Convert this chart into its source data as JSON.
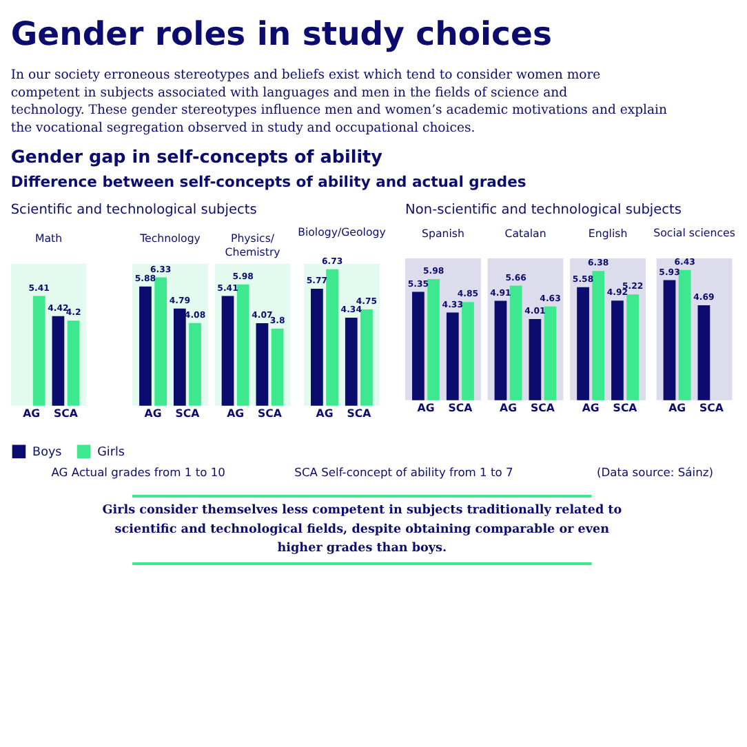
{
  "chart_data": [
    {
      "type": "other",
      "title": "Gender roles in study choices",
      "subtitle": "Gender gap in self-concepts of ability",
      "annotations": [
        "In our society erroneous stereotypes and beliefs exist which tend to consider women more competent in subjects associated with languages and men in the fields of science and technology. These gender stereotypes influence men and women’s academic motivations and explain the vocational segregation observed in study and occupational choices.",
        "Difference between self-concepts of ability and actual grades",
        "Scientific and technological subjects",
        "Non-scientific and technological subjects",
        "AG Actual grades from 1 to 10",
        "SCA Self-concept of ability from 1 to 7",
        "(Data source: Sáinz)",
        "Girls consider themselves less competent in subjects traditionally related to scientific and technological fields, despite obtaining comparable or even higher grades than boys."
      ]
    },
    {
      "type": "bar",
      "title": "Math",
      "categories": [
        "AG",
        "SCA"
      ],
      "ylim": [
        0,
        7
      ],
      "data_labels": true,
      "tick_labels": "x",
      "legend": "bottom",
      "series": [
        {
          "name": "Boys",
          "color": "#0c0c6e",
          "values": [
            null,
            4.42
          ]
        },
        {
          "name": "Girls",
          "color": "#3ee88f",
          "values": [
            5.41,
            4.2
          ]
        }
      ]
    },
    {
      "type": "bar",
      "title": "Technology",
      "categories": [
        "AG",
        "SCA"
      ],
      "ylim": [
        0,
        7
      ],
      "data_labels": true,
      "tick_labels": "x",
      "series": [
        {
          "name": "Boys",
          "color": "#0c0c6e",
          "values": [
            5.88,
            4.79
          ]
        },
        {
          "name": "Girls",
          "color": "#3ee88f",
          "values": [
            6.33,
            4.08
          ]
        }
      ]
    },
    {
      "type": "bar",
      "title": "Physics/ Chemistry",
      "categories": [
        "AG",
        "SCA"
      ],
      "ylim": [
        0,
        7
      ],
      "data_labels": true,
      "tick_labels": "x",
      "series": [
        {
          "name": "Boys",
          "color": "#0c0c6e",
          "values": [
            5.41,
            4.07
          ]
        },
        {
          "name": "Girls",
          "color": "#3ee88f",
          "values": [
            5.98,
            3.8
          ]
        }
      ]
    },
    {
      "type": "bar",
      "title": "Biology/Geology",
      "categories": [
        "AG",
        "SCA"
      ],
      "ylim": [
        0,
        7
      ],
      "data_labels": true,
      "tick_labels": "x",
      "series": [
        {
          "name": "Boys",
          "color": "#0c0c6e",
          "values": [
            5.77,
            4.34
          ]
        },
        {
          "name": "Girls",
          "color": "#3ee88f",
          "values": [
            6.73,
            4.75
          ]
        }
      ]
    },
    {
      "type": "bar",
      "title": "Spanish",
      "categories": [
        "AG",
        "SCA"
      ],
      "ylim": [
        0,
        7
      ],
      "data_labels": true,
      "tick_labels": "x",
      "series": [
        {
          "name": "Boys",
          "color": "#0c0c6e",
          "values": [
            5.35,
            4.33
          ]
        },
        {
          "name": "Girls",
          "color": "#3ee88f",
          "values": [
            5.98,
            4.85
          ]
        }
      ]
    },
    {
      "type": "bar",
      "title": "Catalan",
      "categories": [
        "AG",
        "SCA"
      ],
      "ylim": [
        0,
        7
      ],
      "data_labels": true,
      "tick_labels": "x",
      "series": [
        {
          "name": "Boys",
          "color": "#0c0c6e",
          "values": [
            4.91,
            4.01
          ]
        },
        {
          "name": "Girls",
          "color": "#3ee88f",
          "values": [
            5.66,
            4.63
          ]
        }
      ]
    },
    {
      "type": "bar",
      "title": "English",
      "categories": [
        "AG",
        "SCA"
      ],
      "ylim": [
        0,
        7
      ],
      "data_labels": true,
      "tick_labels": "x",
      "series": [
        {
          "name": "Boys",
          "color": "#0c0c6e",
          "values": [
            5.58,
            4.92
          ]
        },
        {
          "name": "Girls",
          "color": "#3ee88f",
          "values": [
            6.38,
            5.22
          ]
        }
      ]
    },
    {
      "type": "bar",
      "title": "Social sciences",
      "categories": [
        "AG",
        "SCA"
      ],
      "ylim": [
        0,
        7
      ],
      "data_labels": true,
      "tick_labels": "x",
      "series": [
        {
          "name": "Boys",
          "color": "#0c0c6e",
          "values": [
            5.93,
            4.69
          ]
        },
        {
          "name": "Girls",
          "color": "#3ee88f",
          "values": [
            6.43,
            null
          ]
        }
      ]
    }
  ]
}
